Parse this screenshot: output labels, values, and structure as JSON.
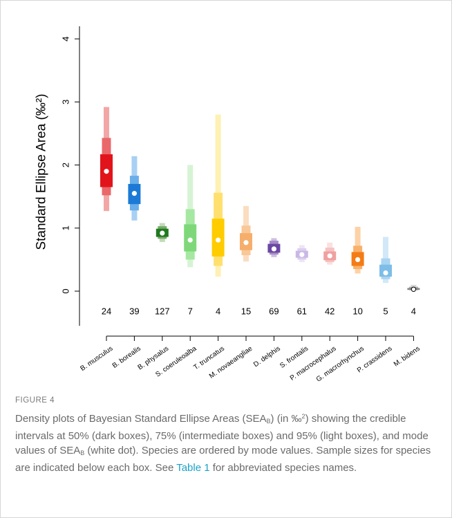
{
  "chart_data": {
    "type": "box",
    "ylabel": "Standard Ellipse Area (‰²)",
    "ylim": [
      -0.55,
      4.2
    ],
    "yticks": [
      "0",
      "1",
      "2",
      "3",
      "4"
    ],
    "grid": false,
    "categories": [
      "B. musculus",
      "B. borealis",
      "B. physalus",
      "S. coeruleoalba",
      "T. truncatus",
      "M. novaeangliae",
      "D. delphis",
      "S. frontalis",
      "P. macrocephalus",
      "G. macrorhynchus",
      "P. crassidens",
      "M. bidens"
    ],
    "sample_sizes": [
      "24",
      "39",
      "127",
      "7",
      "4",
      "15",
      "69",
      "61",
      "42",
      "10",
      "5",
      "4"
    ],
    "series": [
      {
        "name": "B. musculus",
        "mode": 1.9,
        "ci50": [
          1.65,
          2.17
        ],
        "ci75": [
          1.52,
          2.43
        ],
        "ci95": [
          1.27,
          2.92
        ],
        "colors": [
          "#f3a6a6",
          "#e9686a",
          "#e2141b"
        ]
      },
      {
        "name": "B. borealis",
        "mode": 1.55,
        "ci50": [
          1.38,
          1.7
        ],
        "ci75": [
          1.28,
          1.83
        ],
        "ci95": [
          1.12,
          2.14
        ],
        "colors": [
          "#a8d0f4",
          "#6aaeea",
          "#1c7ad6"
        ]
      },
      {
        "name": "B. physalus",
        "mode": 0.92,
        "ci50": [
          0.86,
          0.99
        ],
        "ci75": [
          0.83,
          1.03
        ],
        "ci95": [
          0.78,
          1.08
        ],
        "colors": [
          "#c2dcb6",
          "#79a86b",
          "#1e7a1e"
        ]
      },
      {
        "name": "S. coeruleoalba",
        "mode": 0.81,
        "ci50": [
          0.63,
          1.06
        ],
        "ci75": [
          0.5,
          1.3
        ],
        "ci95": [
          0.38,
          2.0
        ],
        "colors": [
          "#d6f4d4",
          "#a6e8a2",
          "#7ed87a"
        ]
      },
      {
        "name": "T. truncatus",
        "mode": 0.81,
        "ci50": [
          0.55,
          1.15
        ],
        "ci75": [
          0.4,
          1.56
        ],
        "ci95": [
          0.23,
          2.8
        ],
        "colors": [
          "#fff0b4",
          "#ffe06e",
          "#ffcc00"
        ]
      },
      {
        "name": "M. novaeangliae",
        "mode": 0.77,
        "ci50": [
          0.65,
          0.92
        ],
        "ci75": [
          0.57,
          1.04
        ],
        "ci95": [
          0.47,
          1.35
        ],
        "colors": [
          "#fbdcc0",
          "#f9c898",
          "#f6ae6c"
        ]
      },
      {
        "name": "D. delphis",
        "mode": 0.67,
        "ci50": [
          0.61,
          0.75
        ],
        "ci75": [
          0.58,
          0.8
        ],
        "ci95": [
          0.54,
          0.84
        ],
        "colors": [
          "#cdbde0",
          "#a78bc9",
          "#6b48a2"
        ]
      },
      {
        "name": "S. frontalis",
        "mode": 0.58,
        "ci50": [
          0.53,
          0.64
        ],
        "ci75": [
          0.5,
          0.68
        ],
        "ci95": [
          0.46,
          0.73
        ],
        "colors": [
          "#ece6f5",
          "#dbcfee",
          "#c9b8e6"
        ]
      },
      {
        "name": "P. macrocephalus",
        "mode": 0.56,
        "ci50": [
          0.49,
          0.63
        ],
        "ci75": [
          0.46,
          0.69
        ],
        "ci95": [
          0.42,
          0.77
        ],
        "colors": [
          "#fbe0e0",
          "#f6c2c2",
          "#f0a0a0"
        ]
      },
      {
        "name": "G. macrorhynchus",
        "mode": 0.5,
        "ci50": [
          0.4,
          0.62
        ],
        "ci75": [
          0.35,
          0.72
        ],
        "ci95": [
          0.28,
          1.02
        ],
        "colors": [
          "#fcd2a6",
          "#f9b06a",
          "#f47b16"
        ]
      },
      {
        "name": "P. crassidens",
        "mode": 0.29,
        "ci50": [
          0.23,
          0.42
        ],
        "ci75": [
          0.19,
          0.52
        ],
        "ci95": [
          0.13,
          0.86
        ],
        "colors": [
          "#d2e8f8",
          "#a9d4f2",
          "#7dbde8"
        ]
      },
      {
        "name": "M. bidens",
        "mode": 0.03,
        "ci50": [
          0.02,
          0.05
        ],
        "ci75": [
          0.015,
          0.07
        ],
        "ci95": [
          0.01,
          0.1
        ],
        "colors": [
          "#d8d8d8",
          "#b0b0b0",
          "#888888"
        ]
      }
    ]
  },
  "caption": {
    "label": "FIGURE 4",
    "t1": "Density plots of Bayesian Standard Ellipse Areas (SEA",
    "sub1": "B",
    "t2": ") (in ‰",
    "sup1": "2",
    "t3": ") showing the credible intervals at 50% (dark boxes), 75% (intermediate boxes) and 95% (light boxes), and mode values of SEA",
    "sub2": "B",
    "t4": " (white dot). Species are ordered by mode values. Sample sizes for species are indicated below each box. See ",
    "link": "Table 1",
    "t5": " for abbreviated species names."
  }
}
